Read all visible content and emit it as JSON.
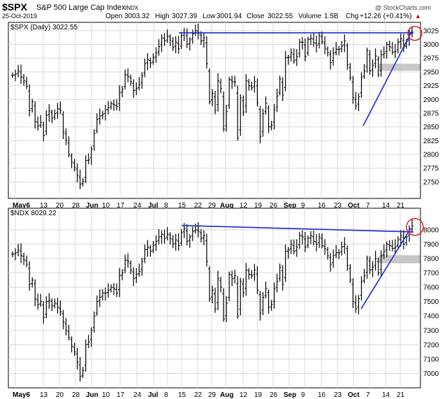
{
  "header": {
    "symbol": "$SPX",
    "name": "S&P 500 Large Cap Index",
    "exchange": "INDX",
    "date": "25-Oct-2019",
    "open_label": "Open",
    "open": "3003.32",
    "high_label": "High",
    "high": "3027.39",
    "low_label": "Low",
    "low": "3001.94",
    "close_label": "Close",
    "close": "3022.55",
    "volume_label": "Volume",
    "volume": "1.5B",
    "chg_label": "Chg",
    "chg": "+12.26 (+0.41%)",
    "arrow": "▲",
    "watermark": "@ StockCharts.com"
  },
  "colors": {
    "bars": "#000000",
    "trendline": "#1a2bd6",
    "circle": "#e02020",
    "zone": "#c8c8c8",
    "grid": "#d8d8d8",
    "border": "#000000"
  },
  "chart_data": [
    {
      "type": "ohlc",
      "label": "$SPX (Daily) 3022.55",
      "ylim": [
        2720,
        3040
      ],
      "y_ticks": [
        "2750",
        "2775",
        "2800",
        "2825",
        "2850",
        "2875",
        "2900",
        "2925",
        "2950",
        "2975",
        "3000",
        "3025"
      ],
      "x_ticks": [
        "May6",
        "13",
        "20",
        "28",
        "Jun",
        "10",
        "17",
        "24",
        "Jul",
        "8",
        "15",
        "22",
        "29",
        "Aug",
        "12",
        "19",
        "26",
        "Sep",
        "9",
        "16",
        "23",
        "Oct",
        "7",
        "14",
        "21"
      ],
      "closes": [
        2944,
        2946,
        2952,
        2941,
        2934,
        2924,
        2880,
        2896,
        2860,
        2852,
        2858,
        2835,
        2871,
        2879,
        2866,
        2874,
        2883,
        2880,
        2841,
        2826,
        2800,
        2786,
        2776,
        2762,
        2746,
        2751,
        2789,
        2790,
        2810,
        2838,
        2864,
        2870,
        2873,
        2881,
        2885,
        2892,
        2890,
        2887,
        2912,
        2918,
        2945,
        2942,
        2932,
        2916,
        2920,
        2927,
        2943,
        2965,
        2972,
        2966,
        2976,
        2984,
        2996,
        3012,
        3006,
        3015,
        3008,
        2995,
        3004,
        2992,
        3016,
        3021,
        3000,
        3008,
        3019,
        3025,
        3020,
        3006,
        3012,
        2965,
        2896,
        2911,
        2880,
        2934,
        2920,
        2846,
        2878,
        2936,
        2932,
        2932,
        2830,
        2903,
        2877,
        2934,
        2925,
        2921,
        2932,
        2894,
        2833,
        2874,
        2893,
        2850,
        2853,
        2881,
        2906,
        2937,
        2908,
        2976,
        2976,
        2985,
        2970,
        2978,
        3004,
        3004,
        2978,
        3009,
        3011,
        3003,
        2998,
        3016,
        3005,
        2993,
        2985,
        2967,
        2984,
        2991,
        2991,
        2997,
        3006,
        2963,
        2939,
        2903,
        2888,
        2905,
        2940,
        2952,
        2989,
        2952,
        2962,
        2979,
        2945,
        2981,
        2984,
        3000,
        2996,
        2986,
        2987,
        3004,
        3010,
        2995,
        3005,
        3019,
        3022
      ],
      "highs_offset": 10,
      "lows_offset": 10,
      "annotations": [
        "trendline-resistance",
        "trendline-support",
        "circle-high",
        "support-zone"
      ]
    },
    {
      "type": "ohlc",
      "label": "$NDX 8029.22",
      "ylim": [
        6900,
        8150
      ],
      "y_ticks": [
        "7000",
        "7100",
        "7200",
        "7300",
        "7400",
        "7500",
        "7600",
        "7700",
        "7800",
        "7900",
        "8000"
      ],
      "x_ticks": [
        "May6",
        "13",
        "20",
        "28",
        "Jun",
        "10",
        "17",
        "24",
        "Jul",
        "8",
        "15",
        "22",
        "29",
        "Aug",
        "12",
        "19",
        "26",
        "Sep",
        "9",
        "16",
        "23",
        "Oct",
        "7",
        "14",
        "21"
      ],
      "closes": [
        7830,
        7840,
        7860,
        7820,
        7790,
        7760,
        7620,
        7650,
        7520,
        7480,
        7500,
        7390,
        7500,
        7510,
        7470,
        7490,
        7460,
        7430,
        7360,
        7300,
        7250,
        7190,
        7150,
        7080,
        6980,
        7020,
        7200,
        7220,
        7300,
        7400,
        7500,
        7530,
        7560,
        7560,
        7580,
        7600,
        7590,
        7560,
        7680,
        7700,
        7790,
        7780,
        7720,
        7660,
        7690,
        7710,
        7780,
        7860,
        7880,
        7850,
        7890,
        7920,
        7950,
        7970,
        7940,
        7970,
        7940,
        7900,
        7930,
        7890,
        7980,
        8010,
        7920,
        7950,
        7990,
        8000,
        7990,
        7940,
        7960,
        7780,
        7520,
        7580,
        7450,
        7660,
        7600,
        7380,
        7490,
        7690,
        7660,
        7680,
        7400,
        7640,
        7560,
        7720,
        7690,
        7680,
        7720,
        7580,
        7420,
        7530,
        7590,
        7460,
        7480,
        7590,
        7640,
        7740,
        7620,
        7850,
        7860,
        7900,
        7850,
        7880,
        7960,
        7950,
        7880,
        7940,
        7960,
        7920,
        7900,
        7950,
        7890,
        7870,
        7820,
        7760,
        7820,
        7840,
        7840,
        7880,
        7900,
        7750,
        7650,
        7500,
        7450,
        7520,
        7640,
        7680,
        7800,
        7720,
        7740,
        7800,
        7700,
        7820,
        7850,
        7900,
        7890,
        7870,
        7880,
        7930,
        7960,
        7900,
        7950,
        8000,
        8029
      ],
      "highs_offset": 40,
      "lows_offset": 40,
      "annotations": [
        "trendline-resistance",
        "trendline-support",
        "circle-high",
        "support-zone"
      ]
    }
  ]
}
